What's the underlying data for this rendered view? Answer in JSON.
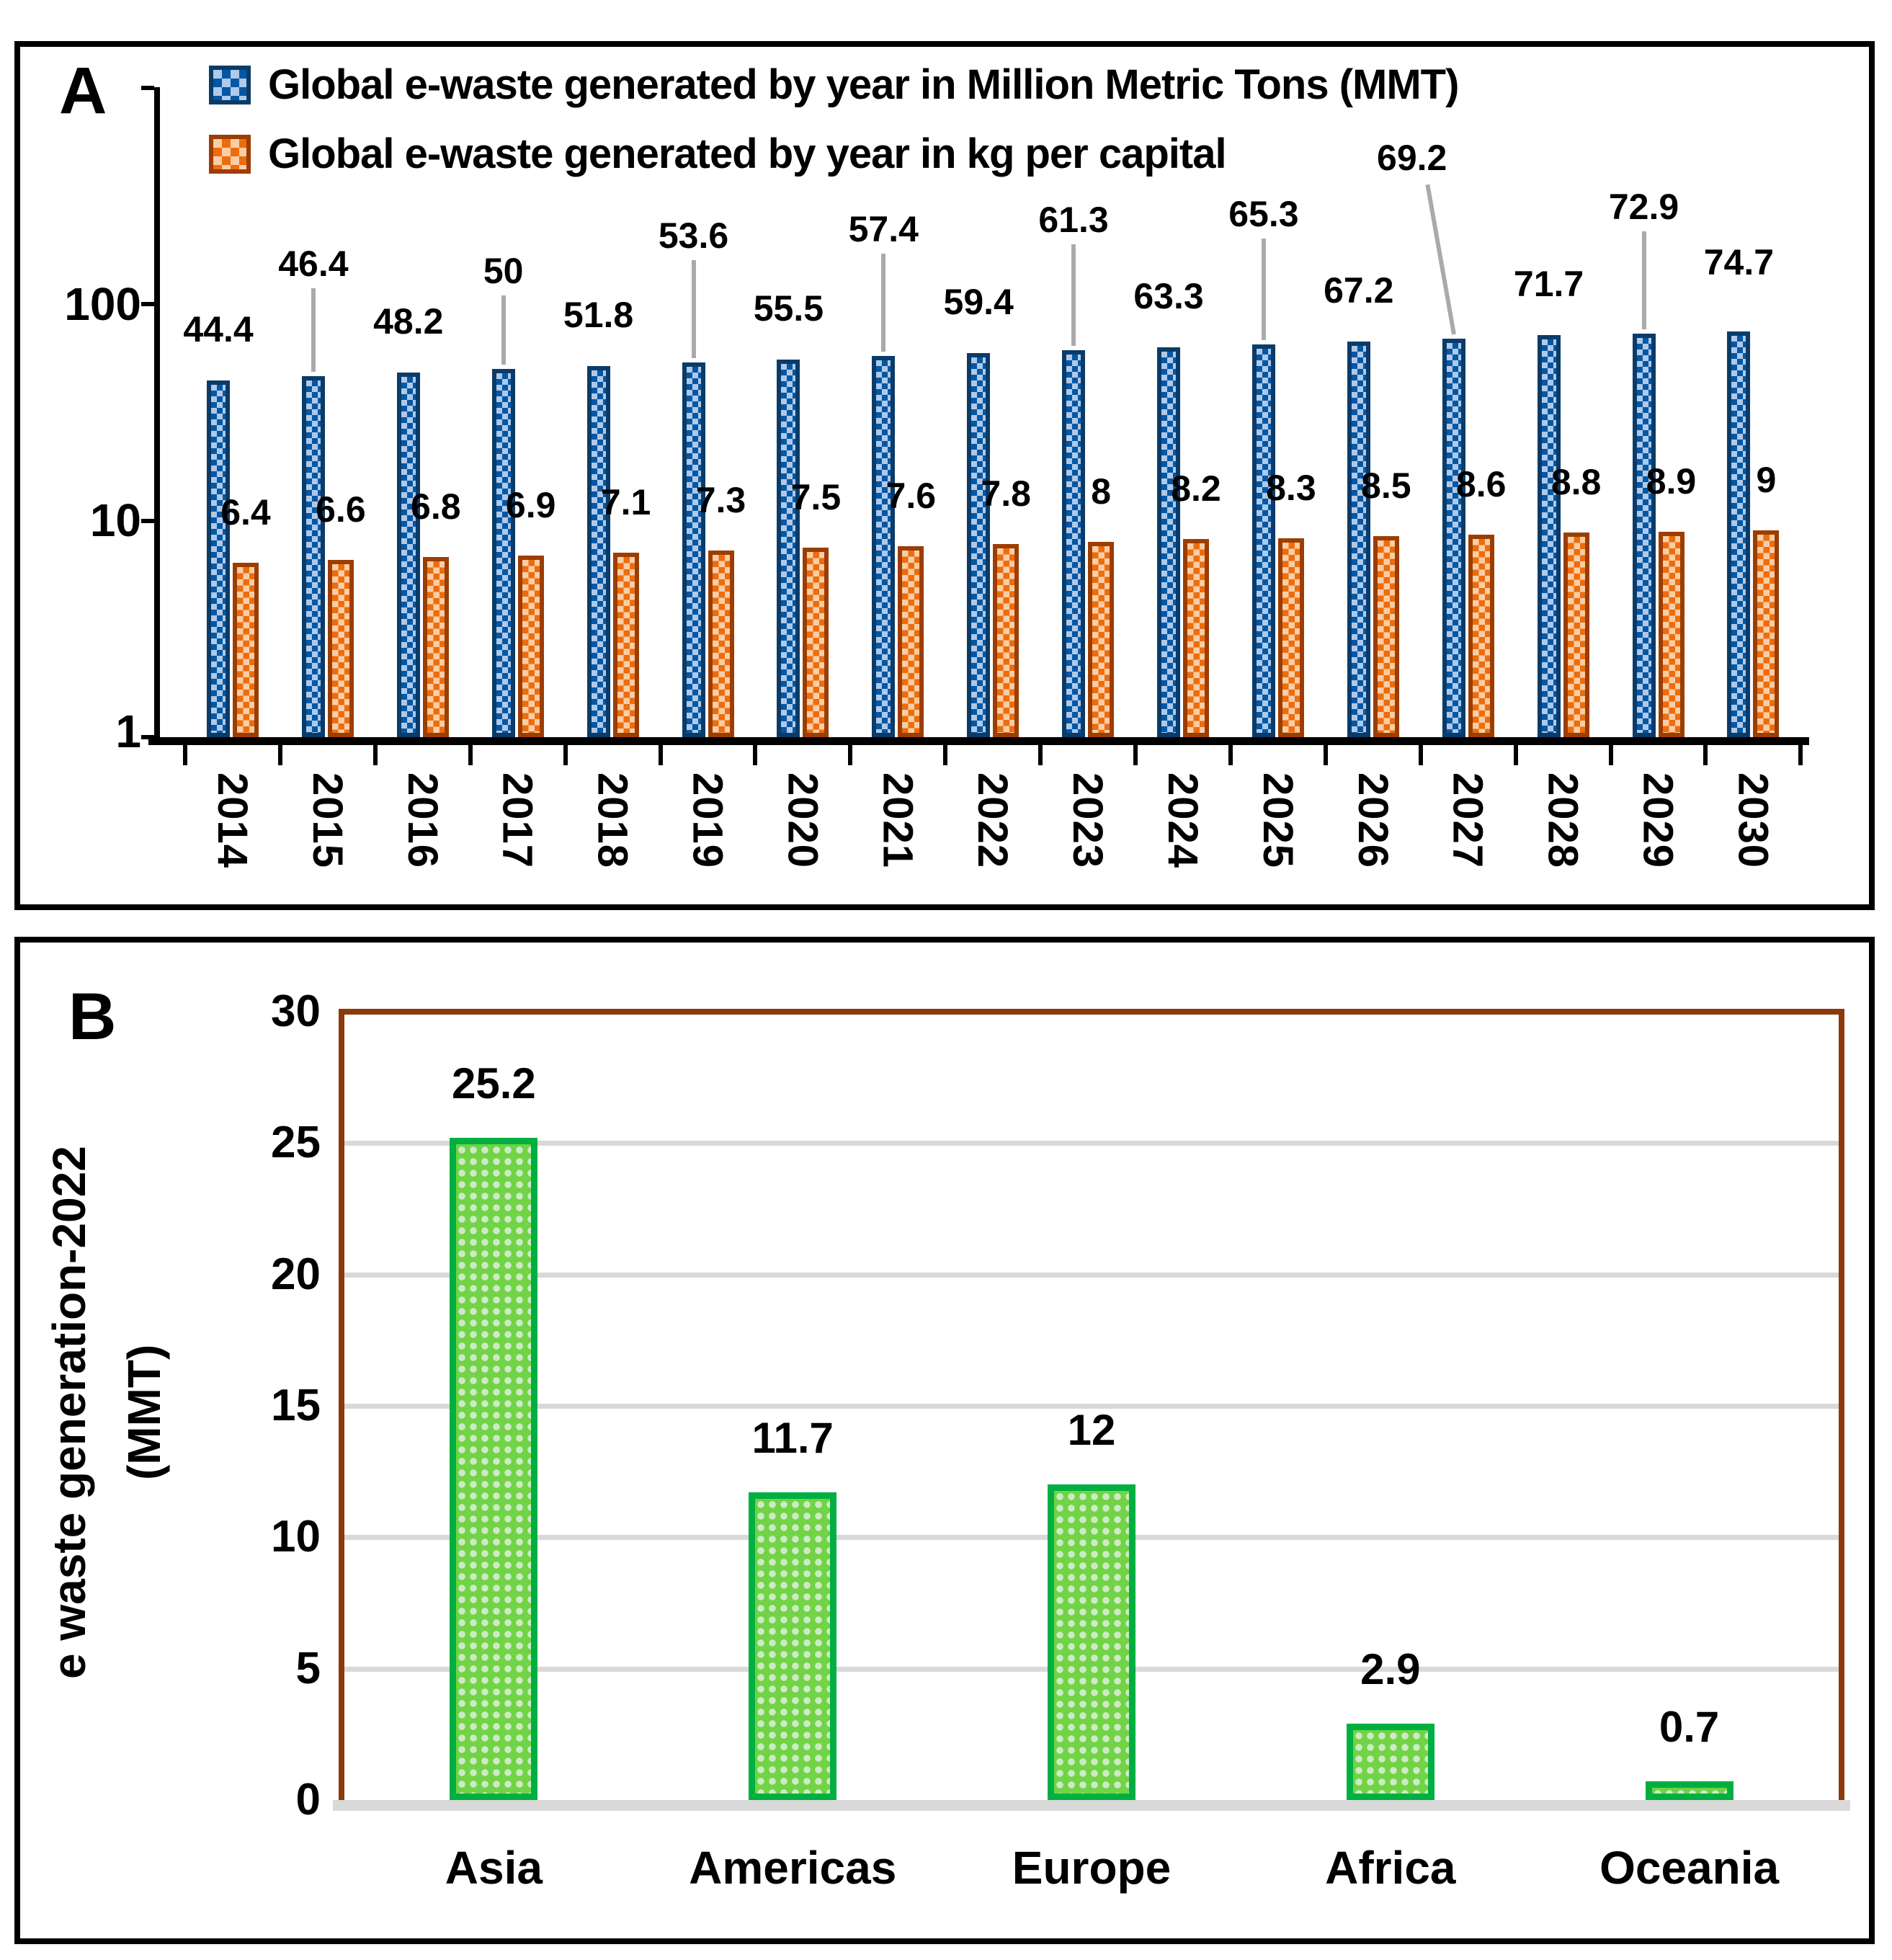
{
  "panels": {
    "a_label": "A",
    "b_label": "B"
  },
  "colors": {
    "blue_border": "#0A3B69",
    "blue_check_dark": "#0357A4",
    "blue_check_light": "#AFC9EA",
    "orange_border": "#9C3D02",
    "orange_check_dark": "#EC6D0D",
    "orange_check_light": "#FACDA5",
    "green_border": "#00AF41",
    "green_fill": "#71D345",
    "green_dot": "#CDEAC6",
    "frame_brown": "#8C3A0D",
    "gridline_gray": "#D9D9D9",
    "leader_gray": "#AAAAAA",
    "axis_black": "#000000"
  },
  "chart_data": [
    {
      "panel": "A",
      "type": "bar",
      "y_scale": "log",
      "ylim": [
        1,
        1000
      ],
      "y_tick_labels": [
        "1",
        "10",
        "100"
      ],
      "grid": false,
      "legend_position": "top-left",
      "categories": [
        "2014",
        "2015",
        "2016",
        "2017",
        "2018",
        "2019",
        "2020",
        "2021",
        "2022",
        "2023",
        "2024",
        "2025",
        "2026",
        "2027",
        "2028",
        "2029",
        "2030"
      ],
      "series": [
        {
          "name": "Global e-waste generated by year in Million Metric Tons (MMT)",
          "color_key": "blue",
          "values": [
            44.4,
            46.4,
            48.2,
            50,
            51.8,
            53.6,
            55.5,
            57.4,
            59.4,
            61.3,
            63.3,
            65.3,
            67.2,
            69.2,
            71.7,
            72.9,
            74.7
          ],
          "labels": [
            "44.4",
            "46.4",
            "48.2",
            "50",
            "51.8",
            "53.6",
            "55.5",
            "57.4",
            "59.4",
            "61.3",
            "63.3",
            "65.3",
            "67.2",
            "69.2",
            "71.7",
            "72.9",
            "74.7"
          ],
          "label_lift": [
            45,
            130,
            45,
            110,
            45,
            150,
            45,
            150,
            45,
            155,
            45,
            155,
            45,
            225,
            45,
            150,
            70
          ],
          "label_leader": [
            false,
            true,
            false,
            true,
            false,
            true,
            false,
            true,
            false,
            true,
            false,
            true,
            false,
            true,
            false,
            true,
            false
          ]
        },
        {
          "name": "Global e-waste generated by year in kg per capital",
          "color_key": "orange",
          "values": [
            6.4,
            6.6,
            6.8,
            6.9,
            7.1,
            7.3,
            7.5,
            7.6,
            7.8,
            8,
            8.2,
            8.3,
            8.5,
            8.6,
            8.8,
            8.9,
            9
          ],
          "labels": [
            "6.4",
            "6.6",
            "6.8",
            "6.9",
            "7.1",
            "7.3",
            "7.5",
            "7.6",
            "7.8",
            "8",
            "8.2",
            "8.3",
            "8.5",
            "8.6",
            "8.8",
            "8.9",
            "9"
          ]
        }
      ]
    },
    {
      "panel": "B",
      "type": "bar",
      "ylim": [
        0,
        30
      ],
      "y_ticks": [
        "0",
        "5",
        "10",
        "15",
        "20",
        "25",
        "30"
      ],
      "grid": true,
      "ylabel_lines": [
        "e waste generation-2022",
        "(MMT)"
      ],
      "categories": [
        "Asia",
        "Americas",
        "Europe",
        "Africa",
        "Oceania"
      ],
      "values": [
        25.2,
        11.7,
        12,
        2.9,
        0.7
      ],
      "labels": [
        "25.2",
        "11.7",
        "12",
        "2.9",
        "0.7"
      ]
    }
  ]
}
